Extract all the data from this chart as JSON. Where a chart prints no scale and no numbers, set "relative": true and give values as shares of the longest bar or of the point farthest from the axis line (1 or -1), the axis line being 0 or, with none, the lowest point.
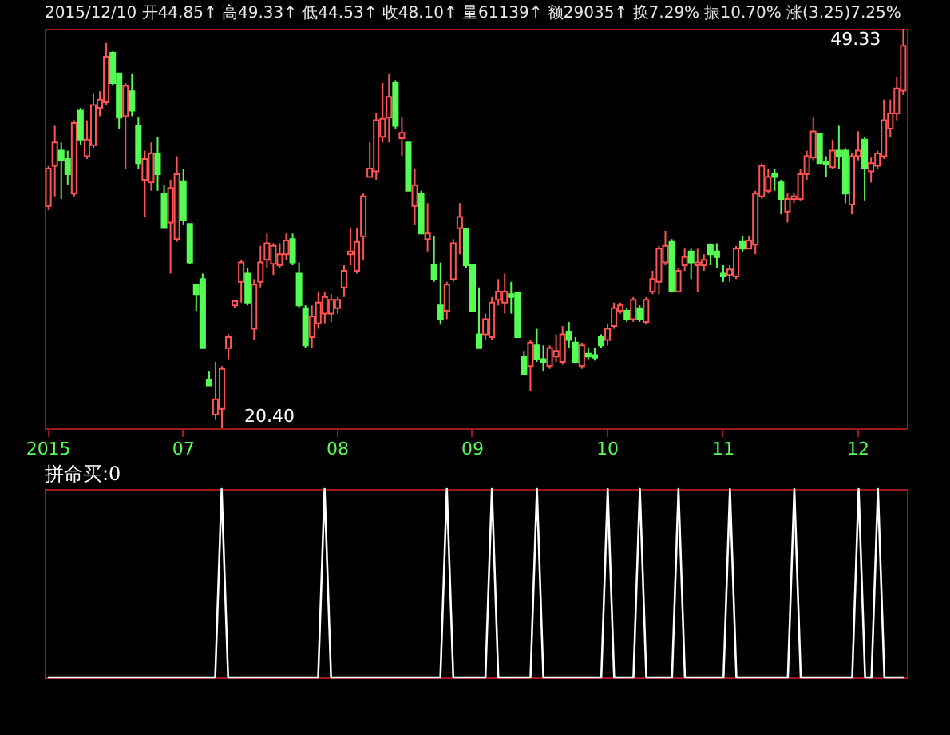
{
  "chart_data": [
    {
      "type": "candlestick",
      "subtitle": "2015/12/10 开44.85↑ 高49.33↑ 低44.53↑ 收48.10↑ 量61139↑ 额29035↑ 换7.29% 振10.70% 涨(3.25)7.25%",
      "tick_labels": "x",
      "categories": [
        "2015",
        null,
        null,
        null,
        null,
        null,
        null,
        null,
        null,
        null,
        null,
        null,
        null,
        null,
        null,
        null,
        null,
        null,
        null,
        null,
        null,
        "07",
        null,
        null,
        null,
        null,
        null,
        null,
        null,
        null,
        null,
        null,
        null,
        null,
        null,
        null,
        null,
        null,
        null,
        null,
        null,
        null,
        null,
        null,
        null,
        "08",
        null,
        null,
        null,
        null,
        null,
        null,
        null,
        null,
        null,
        null,
        null,
        null,
        null,
        null,
        null,
        null,
        null,
        null,
        null,
        null,
        "09",
        null,
        null,
        null,
        null,
        null,
        null,
        null,
        null,
        null,
        null,
        null,
        null,
        null,
        null,
        null,
        null,
        null,
        null,
        null,
        null,
        "10",
        null,
        null,
        null,
        null,
        null,
        null,
        null,
        null,
        null,
        null,
        null,
        null,
        null,
        null,
        null,
        null,
        null,
        "11",
        null,
        null,
        null,
        null,
        null,
        null,
        null,
        null,
        null,
        null,
        null,
        null,
        null,
        null,
        null,
        null,
        null,
        null,
        null,
        null,
        "12",
        null,
        null,
        null,
        null,
        null,
        null,
        null
      ],
      "ohlc": [
        [
          36.5,
          39.4,
          36.2,
          39.2
        ],
        [
          39.4,
          42.3,
          37.2,
          41.1
        ],
        [
          40.5,
          41.1,
          37.0,
          39.8
        ],
        [
          39.9,
          40.5,
          38.0,
          38.8
        ],
        [
          37.4,
          42.7,
          37.2,
          42.5
        ],
        [
          43.4,
          43.6,
          40.9,
          41.3
        ],
        [
          40.1,
          42.7,
          39.9,
          41.3
        ],
        [
          40.9,
          44.6,
          40.7,
          43.8
        ],
        [
          43.6,
          44.8,
          43.0,
          44.2
        ],
        [
          44.0,
          48.3,
          43.8,
          47.3
        ],
        [
          47.6,
          47.7,
          45.2,
          45.4
        ],
        [
          46.1,
          46.1,
          42.1,
          42.9
        ],
        [
          43.0,
          45.4,
          39.2,
          45.2
        ],
        [
          44.8,
          46.1,
          43.0,
          43.4
        ],
        [
          42.3,
          42.9,
          39.2,
          39.6
        ],
        [
          38.4,
          40.5,
          35.7,
          39.9
        ],
        [
          38.2,
          41.1,
          37.6,
          40.3
        ],
        [
          40.3,
          41.5,
          37.6,
          38.8
        ],
        [
          37.4,
          38.0,
          34.9,
          34.9
        ],
        [
          35.3,
          38.4,
          31.6,
          37.8
        ],
        [
          34.1,
          40.1,
          33.9,
          38.8
        ],
        [
          38.3,
          39.2,
          35.1,
          35.5
        ],
        [
          35.2,
          35.2,
          32.3,
          32.4
        ],
        [
          30.8,
          30.8,
          28.9,
          30.1
        ],
        [
          31.2,
          31.6,
          26.2,
          26.2
        ],
        [
          23.9,
          24.5,
          23.5,
          23.5
        ],
        [
          21.4,
          25.2,
          21.0,
          22.5
        ],
        [
          21.8,
          24.9,
          20.4,
          24.7
        ],
        [
          26.2,
          27.2,
          25.4,
          27.0
        ],
        [
          29.3,
          29.7,
          29.1,
          29.6
        ],
        [
          31.0,
          32.6,
          29.5,
          32.4
        ],
        [
          31.6,
          32.0,
          29.3,
          29.5
        ],
        [
          27.6,
          31.2,
          26.8,
          30.8
        ],
        [
          31.0,
          33.6,
          30.6,
          32.4
        ],
        [
          32.6,
          34.5,
          32.0,
          33.8
        ],
        [
          32.3,
          33.8,
          31.5,
          33.6
        ],
        [
          32.2,
          33.8,
          32.0,
          33.0
        ],
        [
          33.0,
          34.5,
          32.6,
          34.0
        ],
        [
          34.1,
          34.5,
          32.2,
          32.4
        ],
        [
          31.6,
          32.4,
          29.1,
          29.3
        ],
        [
          29.1,
          29.3,
          26.2,
          26.4
        ],
        [
          27.0,
          29.3,
          26.2,
          28.5
        ],
        [
          28.0,
          30.3,
          27.6,
          29.5
        ],
        [
          28.7,
          30.3,
          28.0,
          29.9
        ],
        [
          28.7,
          30.1,
          28.1,
          29.7
        ],
        [
          29.1,
          29.9,
          28.7,
          29.7
        ],
        [
          30.6,
          32.2,
          29.9,
          31.8
        ],
        [
          33.0,
          34.9,
          32.2,
          33.2
        ],
        [
          31.8,
          34.9,
          31.6,
          33.9
        ],
        [
          34.3,
          37.4,
          32.6,
          37.2
        ],
        [
          38.6,
          41.1,
          38.6,
          39.2
        ],
        [
          39.0,
          43.2,
          38.4,
          42.7
        ],
        [
          41.5,
          45.4,
          41.1,
          42.8
        ],
        [
          42.9,
          46.1,
          41.1,
          44.4
        ],
        [
          45.4,
          45.6,
          42.1,
          42.3
        ],
        [
          41.4,
          42.9,
          40.1,
          41.8
        ],
        [
          41.1,
          41.1,
          37.6,
          37.6
        ],
        [
          36.5,
          39.2,
          35.1,
          38.0
        ],
        [
          37.4,
          37.6,
          34.5,
          34.5
        ],
        [
          34.1,
          36.7,
          33.2,
          34.5
        ],
        [
          32.2,
          34.3,
          31.0,
          31.2
        ],
        [
          29.3,
          32.4,
          27.9,
          28.3
        ],
        [
          28.9,
          31.0,
          28.3,
          30.8
        ],
        [
          31.2,
          34.1,
          31.0,
          33.8
        ],
        [
          34.9,
          36.7,
          33.0,
          35.7
        ],
        [
          34.8,
          34.9,
          32.0,
          32.2
        ],
        [
          32.2,
          32.2,
          28.9,
          28.9
        ],
        [
          27.2,
          30.6,
          26.2,
          26.2
        ],
        [
          27.2,
          28.7,
          26.8,
          28.3
        ],
        [
          27.0,
          29.9,
          26.8,
          29.5
        ],
        [
          29.7,
          31.2,
          29.3,
          30.3
        ],
        [
          29.5,
          31.6,
          28.7,
          30.3
        ],
        [
          30.1,
          31.0,
          28.7,
          29.9
        ],
        [
          30.2,
          30.3,
          27.0,
          27.0
        ],
        [
          25.6,
          26.0,
          24.3,
          24.3
        ],
        [
          24.9,
          26.8,
          23.1,
          26.6
        ],
        [
          26.4,
          27.6,
          25.2,
          25.4
        ],
        [
          25.4,
          26.4,
          24.5,
          25.2
        ],
        [
          24.9,
          26.4,
          24.7,
          26.2
        ],
        [
          25.6,
          27.2,
          25.2,
          26.0
        ],
        [
          25.2,
          27.8,
          25.0,
          27.2
        ],
        [
          27.4,
          28.1,
          26.2,
          26.8
        ],
        [
          26.6,
          27.0,
          25.2,
          25.2
        ],
        [
          24.9,
          26.6,
          24.7,
          26.4
        ],
        [
          25.8,
          26.2,
          25.4,
          25.6
        ],
        [
          25.7,
          26.2,
          25.3,
          25.5
        ],
        [
          27.0,
          27.2,
          26.2,
          26.4
        ],
        [
          26.8,
          28.0,
          26.4,
          27.6
        ],
        [
          27.8,
          29.5,
          27.6,
          29.1
        ],
        [
          28.9,
          29.5,
          28.7,
          29.3
        ],
        [
          28.9,
          29.1,
          28.1,
          28.3
        ],
        [
          28.3,
          29.9,
          28.1,
          29.7
        ],
        [
          29.1,
          29.3,
          28.1,
          28.3
        ],
        [
          28.1,
          29.9,
          27.9,
          29.7
        ],
        [
          30.3,
          31.8,
          30.1,
          31.2
        ],
        [
          31.0,
          33.6,
          30.1,
          33.4
        ],
        [
          32.4,
          34.7,
          32.2,
          33.6
        ],
        [
          33.9,
          34.1,
          30.3,
          30.3
        ],
        [
          30.3,
          32.0,
          30.3,
          31.8
        ],
        [
          32.2,
          33.4,
          31.8,
          32.8
        ],
        [
          33.2,
          33.4,
          31.2,
          32.4
        ],
        [
          32.2,
          33.4,
          30.3,
          32.4
        ],
        [
          32.2,
          33.0,
          31.8,
          32.6
        ],
        [
          33.7,
          33.8,
          32.2,
          33.0
        ],
        [
          33.2,
          33.8,
          32.0,
          32.8
        ],
        [
          31.6,
          32.2,
          31.0,
          31.4
        ],
        [
          31.5,
          32.2,
          31.0,
          31.9
        ],
        [
          31.4,
          33.6,
          31.2,
          33.4
        ],
        [
          33.9,
          34.3,
          33.2,
          33.4
        ],
        [
          33.4,
          34.3,
          33.4,
          34.0
        ],
        [
          33.7,
          37.6,
          33.0,
          37.4
        ],
        [
          37.2,
          39.6,
          37.0,
          39.4
        ],
        [
          37.6,
          39.2,
          37.4,
          38.6
        ],
        [
          38.8,
          39.2,
          37.6,
          38.6
        ],
        [
          38.2,
          38.4,
          35.9,
          37.0
        ],
        [
          36.1,
          37.4,
          35.3,
          37.0
        ],
        [
          37.0,
          37.4,
          36.7,
          37.2
        ],
        [
          37.0,
          39.2,
          36.9,
          38.8
        ],
        [
          38.8,
          40.5,
          38.4,
          40.1
        ],
        [
          40.0,
          42.9,
          39.8,
          41.9
        ],
        [
          41.7,
          41.7,
          39.6,
          39.6
        ],
        [
          39.7,
          40.1,
          38.6,
          39.5
        ],
        [
          39.3,
          41.3,
          39.2,
          40.5
        ],
        [
          40.5,
          42.3,
          39.2,
          40.1
        ],
        [
          40.5,
          40.7,
          36.7,
          37.4
        ],
        [
          36.6,
          40.3,
          35.9,
          40.1
        ],
        [
          40.1,
          41.9,
          39.8,
          40.5
        ],
        [
          41.3,
          41.5,
          36.9,
          39.2
        ],
        [
          39.0,
          40.0,
          38.2,
          39.6
        ],
        [
          39.4,
          40.5,
          39.2,
          40.3
        ],
        [
          40.1,
          44.2,
          39.9,
          42.7
        ],
        [
          42.1,
          44.2,
          41.5,
          43.2
        ],
        [
          43.2,
          45.8,
          42.7,
          45.0
        ],
        [
          44.85,
          49.33,
          44.53,
          48.1
        ]
      ],
      "annotations": [
        "49.33",
        "20.40"
      ]
    },
    {
      "type": "line",
      "title": "拼命买:0",
      "relative": true,
      "tick_labels": false,
      "categories": [
        "2015",
        null,
        null,
        null,
        null,
        null,
        null,
        null,
        null,
        null,
        null,
        null,
        null,
        null,
        null,
        null,
        null,
        null,
        null,
        null,
        null,
        "07",
        null,
        null,
        null,
        null,
        null,
        null,
        null,
        null,
        null,
        null,
        null,
        null,
        null,
        null,
        null,
        null,
        null,
        null,
        null,
        null,
        null,
        null,
        null,
        "08",
        null,
        null,
        null,
        null,
        null,
        null,
        null,
        null,
        null,
        null,
        null,
        null,
        null,
        null,
        null,
        null,
        null,
        null,
        null,
        null,
        "09",
        null,
        null,
        null,
        null,
        null,
        null,
        null,
        null,
        null,
        null,
        null,
        null,
        null,
        null,
        null,
        null,
        null,
        null,
        null,
        null,
        "10",
        null,
        null,
        null,
        null,
        null,
        null,
        null,
        null,
        null,
        null,
        null,
        null,
        null,
        null,
        null,
        null,
        null,
        "11",
        null,
        null,
        null,
        null,
        null,
        null,
        null,
        null,
        null,
        null,
        null,
        null,
        null,
        null,
        null,
        null,
        null,
        null,
        null,
        null,
        "12",
        null,
        null,
        null,
        null,
        null,
        null,
        null
      ],
      "series": [
        {
          "color": "#ffffff",
          "values": [
            0,
            0,
            0,
            0,
            0,
            0,
            0,
            0,
            0,
            0,
            0,
            0,
            0,
            0,
            0,
            0,
            0,
            0,
            0,
            0,
            0,
            0,
            0,
            0,
            0,
            0,
            0,
            1,
            0,
            0,
            0,
            0,
            0,
            0,
            0,
            0,
            0,
            0,
            0,
            0,
            0,
            0,
            0,
            1,
            0,
            0,
            0,
            0,
            0,
            0,
            0,
            0,
            0,
            0,
            0,
            0,
            0,
            0,
            0,
            0,
            0,
            0,
            1,
            0,
            0,
            0,
            0,
            0,
            0,
            1,
            0,
            0,
            0,
            0,
            0,
            0,
            1,
            0,
            0,
            0,
            0,
            0,
            0,
            0,
            0,
            0,
            0,
            1,
            0,
            0,
            0,
            0,
            1,
            0,
            0,
            0,
            0,
            0,
            1,
            0,
            0,
            0,
            0,
            0,
            0,
            0,
            1,
            0,
            0,
            0,
            0,
            0,
            0,
            0,
            0,
            0,
            1,
            0,
            0,
            0,
            0,
            0,
            0,
            0,
            0,
            0,
            1,
            0,
            0,
            1,
            0,
            0,
            0,
            0
          ]
        }
      ]
    }
  ]
}
